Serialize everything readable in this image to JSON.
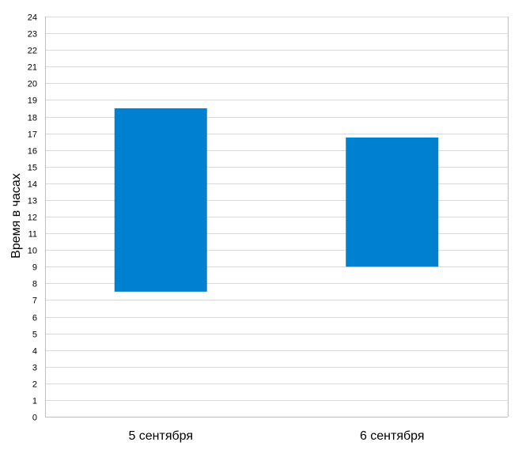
{
  "chart_data": {
    "type": "bar",
    "subtype": "floating-range",
    "categories": [
      "5 сентября",
      "6 сентября"
    ],
    "ranges": [
      [
        7.5,
        18.5
      ],
      [
        9,
        16.75
      ]
    ],
    "ylabel": "Время в часах",
    "xlabel": "",
    "ylim": [
      0,
      24
    ],
    "ytick_step": 1,
    "grid": true,
    "legend": "none",
    "bar_color": "#0080d0",
    "grid_color": "#d9d9d9"
  }
}
